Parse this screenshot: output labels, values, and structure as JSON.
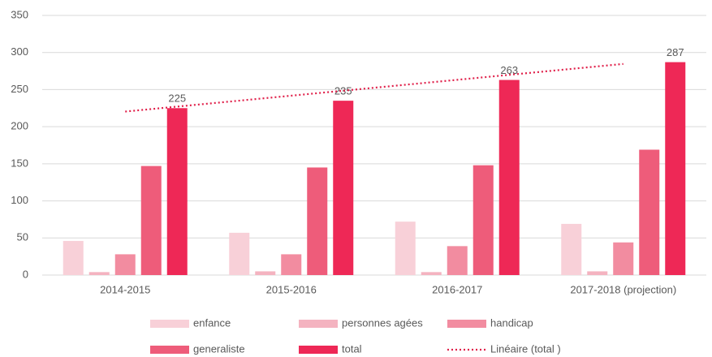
{
  "chart_data": {
    "type": "bar",
    "categories": [
      "2014-2015",
      "2015-2016",
      "2016-2017",
      "2017-2018 (projection)"
    ],
    "series": [
      {
        "name": "enfance",
        "color": "#f8d0d8",
        "values": [
          46,
          57,
          72,
          69
        ]
      },
      {
        "name": "personnes agées",
        "color": "#f4b3c0",
        "values": [
          4,
          5,
          4,
          5
        ]
      },
      {
        "name": "handicap",
        "color": "#f28ca0",
        "values": [
          28,
          28,
          39,
          44
        ]
      },
      {
        "name": "generaliste",
        "color": "#ee5c7a",
        "values": [
          147,
          145,
          148,
          169
        ]
      },
      {
        "name": "total",
        "color": "#ee2856",
        "values": [
          225,
          235,
          263,
          287
        ],
        "data_labels": true
      },
      {
        "name": "Linéaire (total )",
        "color": "#e0204a",
        "type": "trendline",
        "values": [
          220.4,
          241.8,
          263.2,
          284.6
        ]
      }
    ],
    "ylim": [
      0,
      350
    ],
    "yticks": [
      0,
      50,
      100,
      150,
      200,
      250,
      300,
      350
    ],
    "grid": true
  }
}
